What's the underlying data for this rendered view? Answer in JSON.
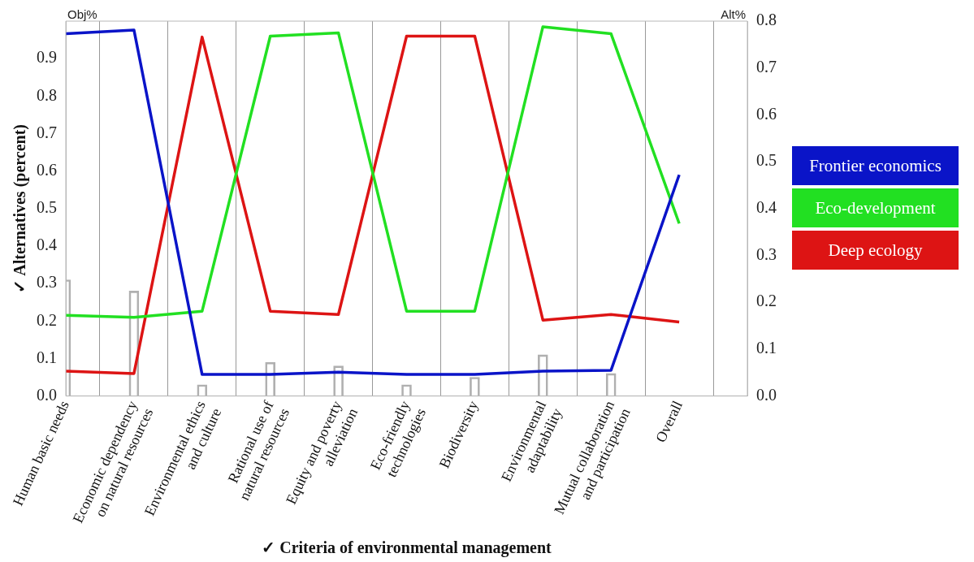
{
  "chart_data": {
    "type": "line",
    "categories": [
      "Human basic needs",
      "Economic dependency on natural resources",
      "Environmental ethics and culture",
      "Rational use of natural resources",
      "Equity and poverty alleviation",
      "Eco-friendly technologies",
      "Biodiversity",
      "Environmental adaptability",
      "Mutual collaboration and participation",
      "Overall"
    ],
    "xlabel": "✓ Criteria of environmental management",
    "ylabel": "✓ Alternatives (percent)",
    "y2label": "Alt%",
    "annotations": [
      "Obj%"
    ],
    "ylim": [
      0,
      1
    ],
    "yticks": [
      {
        "value": 0,
        "label": "0.0"
      },
      0.1,
      0.2,
      0.3,
      0.4,
      0.5,
      0.6,
      0.7,
      0.8,
      0.9
    ],
    "y2lim": [
      0,
      0.8
    ],
    "y2ticks": [
      {
        "value": 0,
        "label": "0.0"
      },
      0.1,
      0.2,
      0.3,
      0.4,
      0.5,
      0.6,
      0.7,
      0.8
    ],
    "grid": "x",
    "legend": "right",
    "marker": "none",
    "line_style": "solid",
    "series": [
      {
        "type": "bar",
        "axis": "y",
        "color": "#b0b0b0",
        "values": [
          0.31,
          0.28,
          0.03,
          0.09,
          0.08,
          0.03,
          0.05,
          0.11,
          0.06,
          null
        ]
      },
      {
        "name": "Frontier economics",
        "axis": "y2",
        "color": "#0a14c8",
        "values": [
          0.773,
          0.781,
          0.046,
          0.046,
          0.051,
          0.046,
          0.046,
          0.053,
          0.055,
          0.472
        ]
      },
      {
        "name": "Eco-development",
        "axis": "y2",
        "color": "#22e022",
        "values": [
          0.172,
          0.168,
          0.181,
          0.768,
          0.775,
          0.181,
          0.181,
          0.788,
          0.773,
          0.368
        ]
      },
      {
        "name": "Deep ecology",
        "axis": "y2",
        "color": "#dd1414",
        "values": [
          0.053,
          0.048,
          0.766,
          0.181,
          0.174,
          0.768,
          0.768,
          0.162,
          0.174,
          0.158
        ]
      }
    ]
  }
}
